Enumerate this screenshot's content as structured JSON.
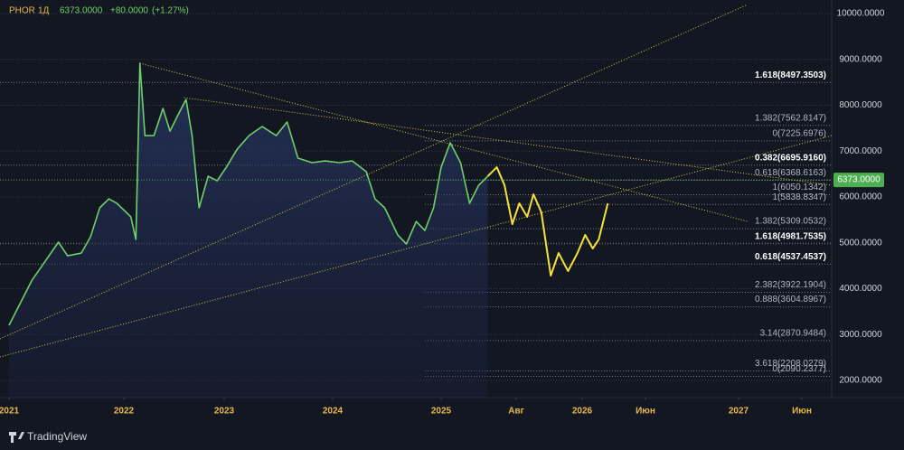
{
  "chart_data": {
    "type": "line",
    "header": {
      "symbol": "PHOR",
      "interval": "1Д",
      "last": "6373.0000",
      "change": "+80.0000",
      "change_pct": "(+1.27%)"
    },
    "brand": "TradingView",
    "xlim": [
      2020.92,
      2027.62
    ],
    "xticks": [
      {
        "value": 2021,
        "label": "2021"
      },
      {
        "value": 2022,
        "label": "2022"
      },
      {
        "value": 2023,
        "label": "2023"
      },
      {
        "value": 2024,
        "label": "2024"
      },
      {
        "value": 2025,
        "label": "2025"
      },
      {
        "value": 2025.58,
        "label": "Авг"
      },
      {
        "value": 2026,
        "label": "2026"
      },
      {
        "value": 2026.42,
        "label": "Июн"
      },
      {
        "value": 2027,
        "label": "2027"
      },
      {
        "value": 2027.42,
        "label": "Июн"
      }
    ],
    "ylim": [
      1626,
      10296
    ],
    "yticks": [
      {
        "value": 2000,
        "label": "2000.0000"
      },
      {
        "value": 3000,
        "label": "3000.0000"
      },
      {
        "value": 4000,
        "label": "4000.0000"
      },
      {
        "value": 5000,
        "label": "5000.0000"
      },
      {
        "value": 6000,
        "label": "6000.0000"
      },
      {
        "value": 7000,
        "label": "7000.0000"
      },
      {
        "value": 8000,
        "label": "8000.0000"
      },
      {
        "value": 9000,
        "label": "9000.0000"
      },
      {
        "value": 10000,
        "label": "10000.0000"
      }
    ],
    "last_price": {
      "value": 6373,
      "label": "6373.0000"
    },
    "series": [
      {
        "color": "#6fcf6a",
        "x": [
          2021.0,
          2021.08,
          2021.2,
          2021.31,
          2021.43,
          2021.51,
          2021.63,
          2021.71,
          2021.79,
          2021.87,
          2021.94,
          2022.07,
          2022.12,
          2022.14,
          2022.16,
          2022.21,
          2022.3,
          2022.39,
          2022.46,
          2022.55,
          2022.62,
          2022.68,
          2022.75,
          2022.84,
          2022.93,
          2023.02,
          2023.12,
          2023.23,
          2023.35,
          2023.48,
          2023.58,
          2023.68,
          2023.81,
          2023.93,
          2024.06,
          2024.18,
          2024.31,
          2024.39,
          2024.48,
          2024.6,
          2024.68,
          2024.77,
          2024.85,
          2024.93,
          2025.0,
          2025.07,
          2025.15,
          2025.22,
          2025.29,
          2025.36
        ],
        "values": [
          3202,
          3596,
          4187,
          4581,
          5015,
          4719,
          4778,
          5133,
          5764,
          5960,
          5862,
          5567,
          5074,
          6946,
          8916,
          7340,
          7340,
          7931,
          7438,
          7833,
          8128,
          7340,
          5764,
          6453,
          6355,
          6650,
          7044,
          7340,
          7537,
          7340,
          7635,
          6847,
          6749,
          6788,
          6749,
          6788,
          6552,
          5960,
          5764,
          5172,
          4975,
          5468,
          5271,
          5764,
          6650,
          7182,
          6749,
          5862,
          6256,
          6453
        ]
      },
      {
        "color": "#f5e13a",
        "x": [
          2025.36,
          2025.43,
          2025.49,
          2025.55,
          2025.6,
          2025.65,
          2025.69,
          2025.74,
          2025.8,
          2025.85,
          2025.91,
          2025.97,
          2026.02,
          2026.07,
          2026.11,
          2026.17
        ],
        "values": [
          6453,
          6650,
          6256,
          5409,
          5862,
          5567,
          6059,
          5665,
          4286,
          4778,
          4384,
          4778,
          5172,
          4877,
          5074,
          5862
        ]
      }
    ],
    "trendlines": [
      {
        "color": "#d8c84a",
        "x": [
          2022.16,
          2027.06
        ],
        "y": [
          8916,
          5468
        ]
      },
      {
        "color": "#d8c84a",
        "x": [
          2022.6,
          2027.62
        ],
        "y": [
          8167,
          6256
        ]
      },
      {
        "color": "#d8c84a",
        "x": [
          2020.92,
          2027.62
        ],
        "y": [
          2512,
          7340
        ]
      },
      {
        "color": "#d8c84a",
        "x": [
          2020.92,
          2027.06
        ],
        "y": [
          2906,
          10197
        ]
      }
    ],
    "levels": [
      {
        "value": 8497.3503,
        "label": "1.618(8497.3503)",
        "bold": true
      },
      {
        "value": 7562.8147,
        "label": "1.382(7562.8147)",
        "bold": false
      },
      {
        "value": 7225.6976,
        "label": "0(7225.6976)",
        "bold": false
      },
      {
        "value": 6695.916,
        "label": "0.382(6695.9160)",
        "bold": true
      },
      {
        "value": 6368.6163,
        "label": "0.618(6368.6163)",
        "bold": false
      },
      {
        "value": 6050.1342,
        "label": "1(6050.1342)",
        "bold": false
      },
      {
        "value": 5838.8347,
        "label": "1(5838.8347)",
        "bold": false
      },
      {
        "value": 5309.0532,
        "label": "1.382(5309.0532)",
        "bold": false
      },
      {
        "value": 4981.7535,
        "label": "1.618(4981.7535)",
        "bold": true
      },
      {
        "value": 4537.4537,
        "label": "0.618(4537.4537)",
        "bold": true
      },
      {
        "value": 3922.1904,
        "label": "2.382(3922.1904)",
        "bold": false
      },
      {
        "value": 3604.8967,
        "label": "0.888(3604.8967)",
        "bold": false
      },
      {
        "value": 2870.9484,
        "label": "3.14(2870.9484)",
        "bold": false
      },
      {
        "value": 2208.0279,
        "label": "3.618(2208.0279)",
        "bold": false
      },
      {
        "value": 2090.2377,
        "label": "0(2090.2377)",
        "bold": false
      }
    ]
  }
}
